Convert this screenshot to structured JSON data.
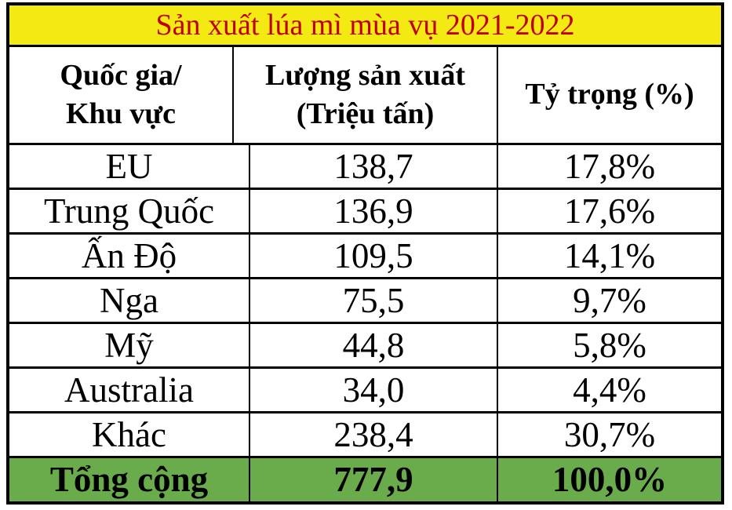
{
  "table": {
    "title": "Sản xuất lúa mì mùa vụ 2021-2022",
    "headers": {
      "country": [
        "Quốc gia/",
        "Khu vực"
      ],
      "production": [
        "Lượng sản xuất",
        "(Triệu tấn)"
      ],
      "share": [
        "Tỷ trọng (%)"
      ]
    },
    "rows": [
      {
        "country": "EU",
        "production": "138,7",
        "share": "17,8%"
      },
      {
        "country": "Trung Quốc",
        "production": "136,9",
        "share": "17,6%"
      },
      {
        "country": "Ấn Độ",
        "production": "109,5",
        "share": "14,1%"
      },
      {
        "country": "Nga",
        "production": "75,5",
        "share": "9,7%"
      },
      {
        "country": "Mỹ",
        "production": "44,8",
        "share": "5,8%"
      },
      {
        "country": "Australia",
        "production": "34,0",
        "share": "4,4%"
      },
      {
        "country": "Khác",
        "production": "238,4",
        "share": "30,7%"
      }
    ],
    "total": {
      "label": "Tổng cộng",
      "production": "777,9",
      "share": "100,0%"
    }
  },
  "chart_data": {
    "type": "table",
    "title": "Sản xuất lúa mì mùa vụ 2021-2022",
    "columns": [
      "Quốc gia/ Khu vực",
      "Lượng sản xuất (Triệu tấn)",
      "Tỷ trọng (%)"
    ],
    "rows": [
      [
        "EU",
        "138,7",
        "17,8%"
      ],
      [
        "Trung Quốc",
        "136,9",
        "17,6%"
      ],
      [
        "Ấn Độ",
        "109,5",
        "14,1%"
      ],
      [
        "Nga",
        "75,5",
        "9,7%"
      ],
      [
        "Mỹ",
        "44,8",
        "5,8%"
      ],
      [
        "Australia",
        "34,0",
        "4,4%"
      ],
      [
        "Khác",
        "238,4",
        "30,7%"
      ],
      [
        "Tổng cộng",
        "777,9",
        "100,0%"
      ]
    ],
    "categories": [
      "EU",
      "Trung Quốc",
      "Ấn Độ",
      "Nga",
      "Mỹ",
      "Australia",
      "Khác"
    ],
    "series": [
      {
        "name": "Lượng sản xuất (Triệu tấn)",
        "values": [
          138.7,
          136.9,
          109.5,
          75.5,
          44.8,
          34.0,
          238.4
        ],
        "total": 777.9
      },
      {
        "name": "Tỷ trọng (%)",
        "values": [
          17.8,
          17.6,
          14.1,
          9.7,
          5.8,
          4.4,
          30.7
        ],
        "total": 100.0
      }
    ]
  },
  "colors": {
    "title_bg": "#f2ea12",
    "title_text": "#c00000",
    "total_bg": "#6aab4c",
    "border": "#000000",
    "text": "#000000"
  }
}
